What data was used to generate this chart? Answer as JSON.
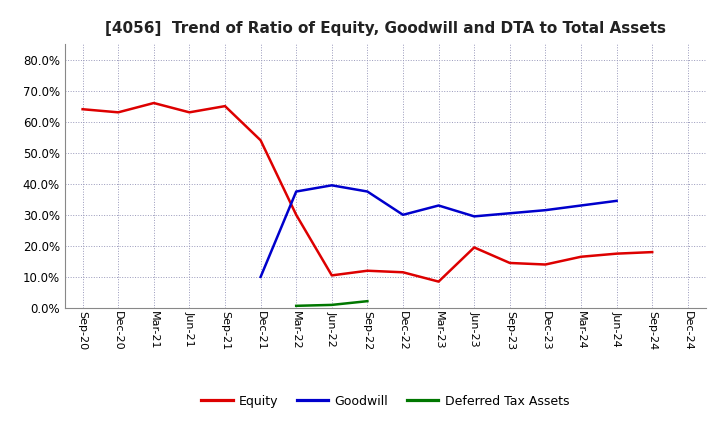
{
  "title": "[4056]  Trend of Ratio of Equity, Goodwill and DTA to Total Assets",
  "x_labels": [
    "Sep-20",
    "Dec-20",
    "Mar-21",
    "Jun-21",
    "Sep-21",
    "Dec-21",
    "Mar-22",
    "Jun-22",
    "Sep-22",
    "Dec-22",
    "Mar-23",
    "Jun-23",
    "Sep-23",
    "Dec-23",
    "Mar-24",
    "Jun-24",
    "Sep-24",
    "Dec-24"
  ],
  "equity": [
    0.64,
    0.63,
    0.66,
    0.63,
    0.65,
    0.54,
    0.3,
    0.105,
    0.12,
    0.115,
    0.085,
    0.195,
    0.145,
    0.14,
    0.165,
    0.175,
    0.18,
    null
  ],
  "goodwill": [
    null,
    null,
    null,
    null,
    null,
    0.1,
    0.375,
    0.395,
    0.375,
    0.3,
    0.33,
    0.295,
    0.305,
    0.315,
    0.33,
    0.345,
    null,
    null
  ],
  "dta": [
    null,
    null,
    null,
    null,
    null,
    null,
    0.007,
    0.01,
    0.022,
    null,
    null,
    null,
    null,
    null,
    null,
    null,
    null,
    null
  ],
  "ylim": [
    0.0,
    0.85
  ],
  "yticks": [
    0.0,
    0.1,
    0.2,
    0.3,
    0.4,
    0.5,
    0.6,
    0.7,
    0.8
  ],
  "equity_color": "#dd0000",
  "goodwill_color": "#0000cc",
  "dta_color": "#007700",
  "bg_color": "#ffffff",
  "grid_color": "#9999bb",
  "title_color": "#222222",
  "line_width": 1.8
}
